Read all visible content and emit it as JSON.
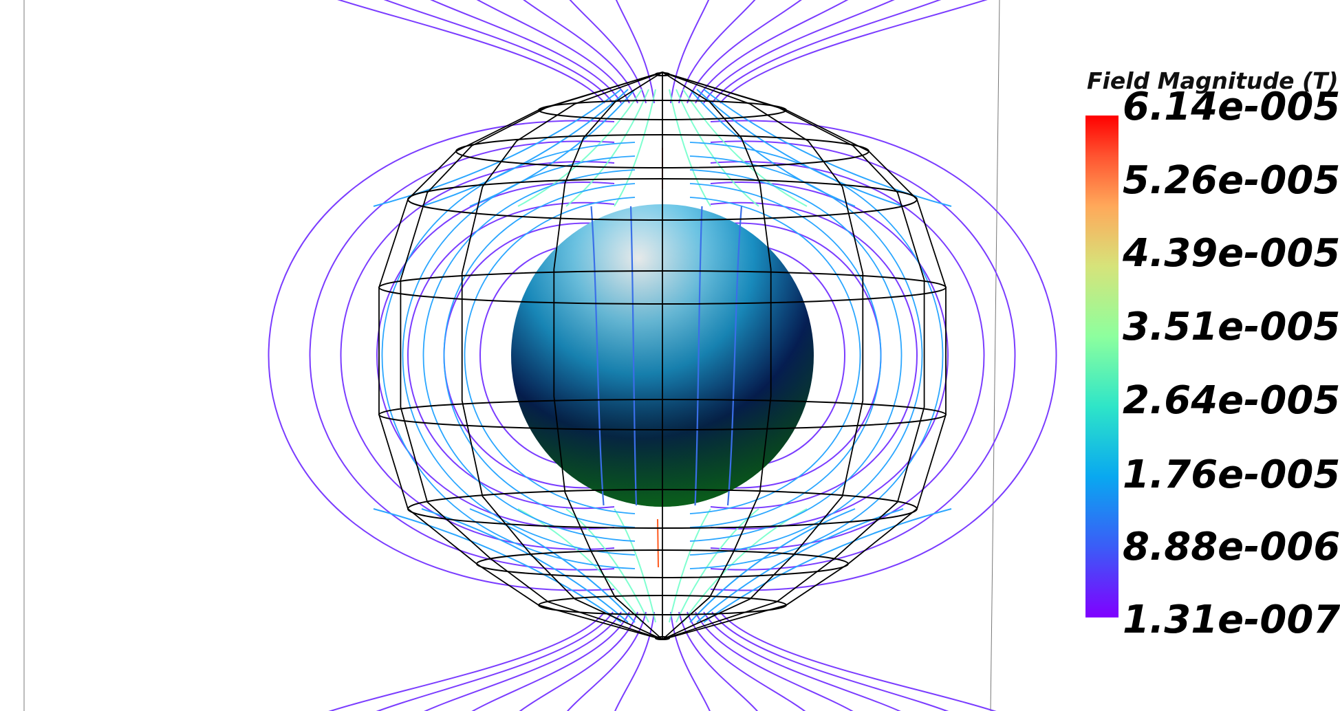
{
  "colorbar": {
    "title": "Field Magnitude (T)",
    "labels": [
      "6.14e-005",
      "5.26e-005",
      "4.39e-005",
      "3.51e-005",
      "2.64e-005",
      "1.76e-005",
      "8.88e-006",
      "1.31e-007"
    ],
    "colormap": [
      "#8000ff",
      "#3b5cf7",
      "#09a8f0",
      "#2ee5c8",
      "#8dff9e",
      "#d6e37a",
      "#ffa85a",
      "#ff5330",
      "#ff0000"
    ]
  },
  "scene": {
    "sphere_colors": [
      "#dfeef4",
      "#33b8e6",
      "#0a2a6a",
      "#0b5a1e"
    ],
    "wireframe_color": "#000000",
    "low_field_color": "#7a3cff",
    "mid_field_color": "#2aa6ff",
    "high_field_color": "#7fffd0",
    "peak_field_color": "#ff5a1f"
  }
}
